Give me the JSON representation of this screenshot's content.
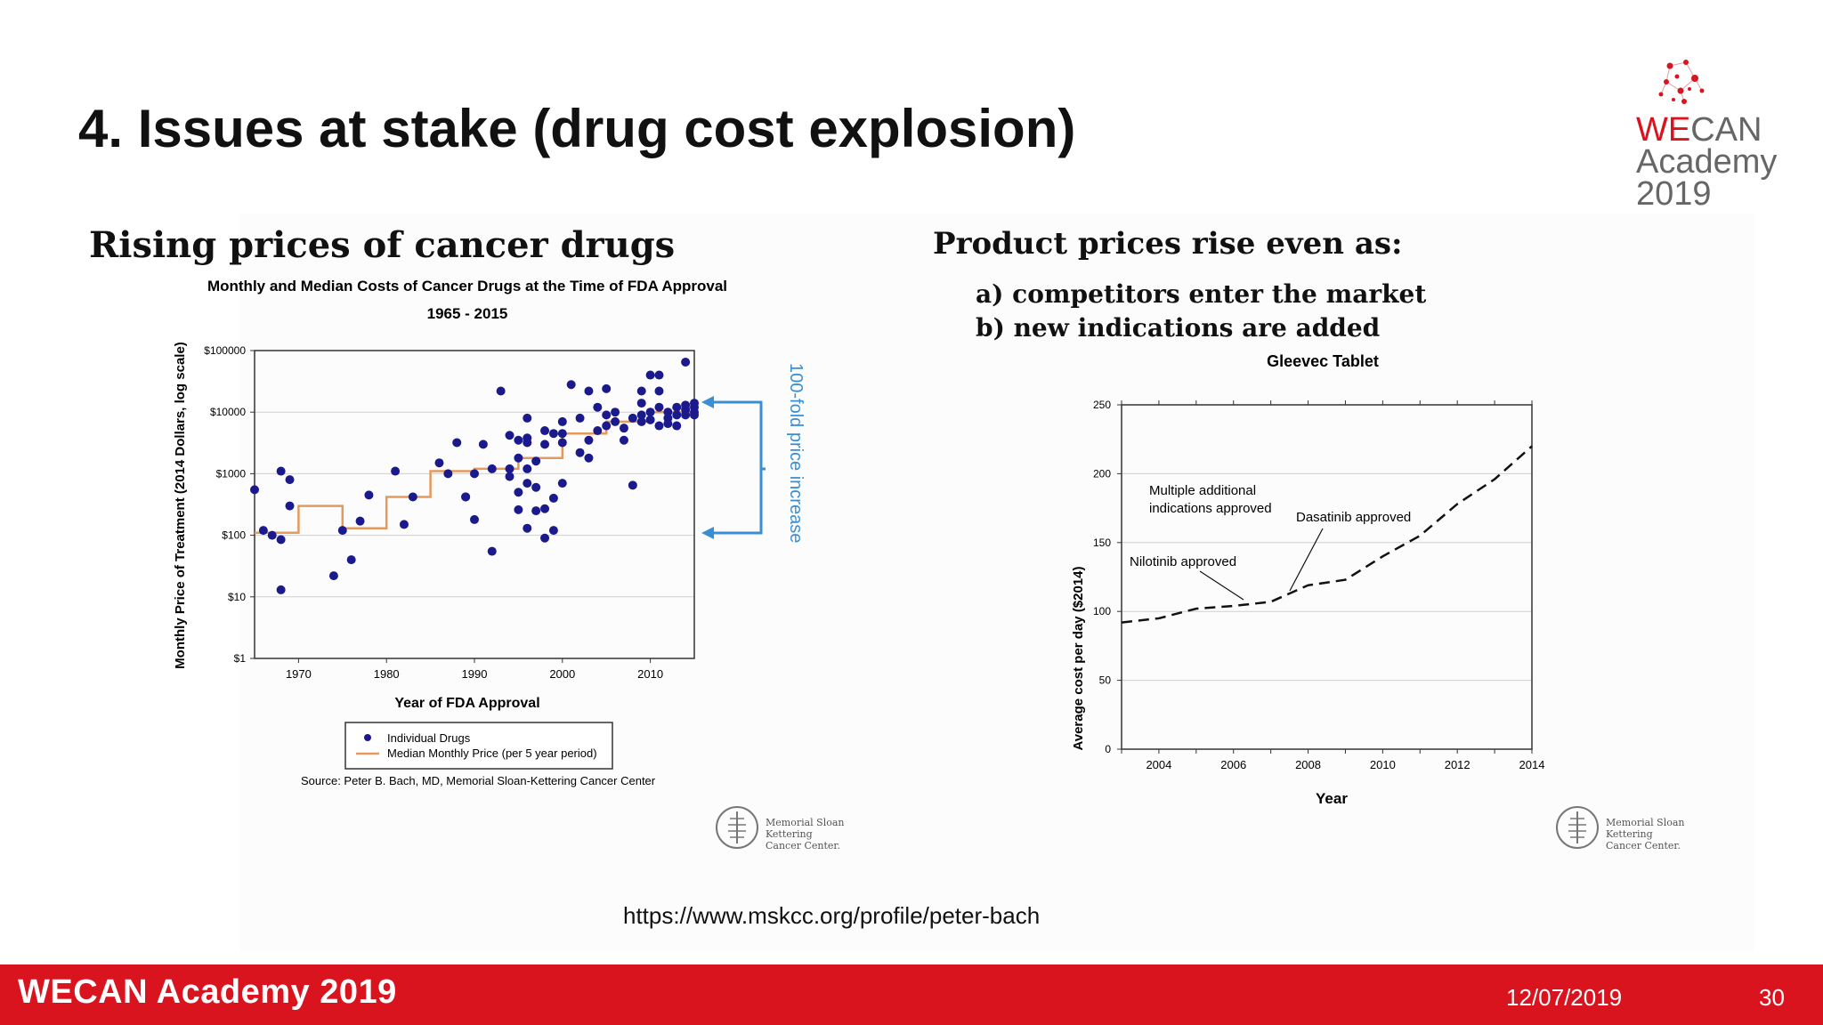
{
  "slide": {
    "title": "4. Issues at stake (drug cost explosion)",
    "logo": {
      "we": "WE",
      "can": "CAN",
      "line2": "Academy",
      "line3": "2019"
    },
    "left_heading": "Rising prices of cancer drugs",
    "right_heading": "Product prices rise even as:",
    "right_points": [
      "a) competitors enter the market",
      "b) new indications are added"
    ],
    "url": "https://www.mskcc.org/profile/peter-bach",
    "footer": {
      "brand": "WECAN Academy 2019",
      "date": "12/07/2019",
      "page": "30"
    },
    "msk_label": [
      "Memorial Sloan Kettering",
      "Cancer Center."
    ],
    "colors": {
      "accent": "#d9141e",
      "dots": "#1a1a8c",
      "median_line": "#e39a5c",
      "annotation": "#3a8fd4"
    }
  },
  "chart_data": [
    {
      "type": "scatter",
      "title": "Monthly and Median Costs of Cancer Drugs at the Time of FDA Approval",
      "subtitle": "1965 - 2015",
      "xlabel": "Year of FDA Approval",
      "ylabel": "Monthly Price of Treatment (2014 Dollars, log scale)",
      "xlim": [
        1965,
        2015
      ],
      "ylim": [
        1,
        100000
      ],
      "yscale": "log",
      "xticks": [
        "1970",
        "1980",
        "1990",
        "2000",
        "2010"
      ],
      "yticks": [
        "$1",
        "$10",
        "$100",
        "$1000",
        "$10000",
        "$100000"
      ],
      "grid": true,
      "legend": [
        "Individual Drugs",
        "Median Monthly Price (per 5 year period)"
      ],
      "source": "Source: Peter B. Bach, MD, Memorial Sloan-Kettering Cancer Center",
      "annotation": "100-fold price increase",
      "series": [
        {
          "name": "Individual Drugs",
          "points": [
            [
              1965,
              550
            ],
            [
              1966,
              120
            ],
            [
              1967,
              100
            ],
            [
              1968,
              1100
            ],
            [
              1968,
              85
            ],
            [
              1968,
              13
            ],
            [
              1969,
              800
            ],
            [
              1969,
              300
            ],
            [
              1974,
              22
            ],
            [
              1975,
              120
            ],
            [
              1976,
              40
            ],
            [
              1977,
              170
            ],
            [
              1978,
              450
            ],
            [
              1981,
              1100
            ],
            [
              1982,
              150
            ],
            [
              1983,
              420
            ],
            [
              1986,
              1500
            ],
            [
              1987,
              1000
            ],
            [
              1988,
              3200
            ],
            [
              1989,
              420
            ],
            [
              1989,
              420
            ],
            [
              1990,
              180
            ],
            [
              1990,
              1000
            ],
            [
              1991,
              3000
            ],
            [
              1992,
              1200
            ],
            [
              1992,
              55
            ],
            [
              1993,
              22000
            ],
            [
              1994,
              1200
            ],
            [
              1994,
              4200
            ],
            [
              1994,
              900
            ],
            [
              1995,
              3500
            ],
            [
              1995,
              1800
            ],
            [
              1995,
              500
            ],
            [
              1995,
              260
            ],
            [
              1996,
              8000
            ],
            [
              1996,
              1200
            ],
            [
              1996,
              700
            ],
            [
              1996,
              130
            ],
            [
              1996,
              3800
            ],
            [
              1996,
              3200
            ],
            [
              1997,
              1600
            ],
            [
              1997,
              600
            ],
            [
              1997,
              250
            ],
            [
              1998,
              5000
            ],
            [
              1998,
              3000
            ],
            [
              1998,
              270
            ],
            [
              1998,
              90
            ],
            [
              1999,
              4500
            ],
            [
              1999,
              400
            ],
            [
              1999,
              120
            ],
            [
              2000,
              7000
            ],
            [
              2000,
              4500
            ],
            [
              2000,
              3200
            ],
            [
              2000,
              700
            ],
            [
              2001,
              28000
            ],
            [
              2002,
              8000
            ],
            [
              2002,
              2200
            ],
            [
              2003,
              22000
            ],
            [
              2003,
              3500
            ],
            [
              2003,
              1800
            ],
            [
              2004,
              5000
            ],
            [
              2004,
              12000
            ],
            [
              2005,
              6000
            ],
            [
              2005,
              24000
            ],
            [
              2005,
              9000
            ],
            [
              2006,
              10000
            ],
            [
              2006,
              7000
            ],
            [
              2007,
              5500
            ],
            [
              2007,
              3500
            ],
            [
              2008,
              8000
            ],
            [
              2008,
              650
            ],
            [
              2009,
              14000
            ],
            [
              2009,
              22000
            ],
            [
              2009,
              9000
            ],
            [
              2009,
              7000
            ],
            [
              2010,
              40000
            ],
            [
              2010,
              10000
            ],
            [
              2010,
              7500
            ],
            [
              2011,
              40000
            ],
            [
              2011,
              22000
            ],
            [
              2011,
              12000
            ],
            [
              2011,
              6000
            ],
            [
              2012,
              10000
            ],
            [
              2012,
              8000
            ],
            [
              2012,
              6500
            ],
            [
              2013,
              12000
            ],
            [
              2013,
              9000
            ],
            [
              2013,
              6000
            ],
            [
              2014,
              65000
            ],
            [
              2014,
              13000
            ],
            [
              2014,
              9000
            ],
            [
              2014,
              11000
            ],
            [
              2015,
              14000
            ],
            [
              2015,
              12000
            ],
            [
              2015,
              10000
            ],
            [
              2015,
              9000
            ]
          ]
        },
        {
          "name": "Median Monthly Price (per 5 year period)",
          "steps": [
            [
              1965,
              110
            ],
            [
              1970,
              300
            ],
            [
              1975,
              130
            ],
            [
              1980,
              420
            ],
            [
              1985,
              1100
            ],
            [
              1990,
              1200
            ],
            [
              1995,
              1800
            ],
            [
              2000,
              4500
            ],
            [
              2005,
              7000
            ],
            [
              2010,
              10000
            ],
            [
              2015,
              10000
            ]
          ]
        }
      ]
    },
    {
      "type": "line",
      "title": "Gleevec Tablet",
      "xlabel": "Year",
      "ylabel": "Average cost per day ($2014)",
      "xlim": [
        2003,
        2014
      ],
      "ylim": [
        0,
        250
      ],
      "xticks": [
        "2004",
        "2006",
        "2008",
        "2010",
        "2012",
        "2014"
      ],
      "yticks": [
        "0",
        "50",
        "100",
        "150",
        "200",
        "250"
      ],
      "grid": true,
      "x": [
        2003,
        2004,
        2005,
        2006,
        2007,
        2008,
        2009,
        2010,
        2011,
        2012,
        2013,
        2014
      ],
      "y": [
        92,
        95,
        102,
        104,
        107,
        119,
        123,
        140,
        155,
        178,
        196,
        220
      ],
      "annotations": [
        {
          "text": [
            "Multiple additional",
            "indications approved"
          ],
          "x": 2006.1,
          "y": 104
        },
        {
          "text": [
            "Nilotinib approved"
          ],
          "x": 2006.1,
          "y": 104
        },
        {
          "text": [
            "Dasatinib approved"
          ],
          "x": 2007.4,
          "y": 112
        }
      ]
    }
  ]
}
